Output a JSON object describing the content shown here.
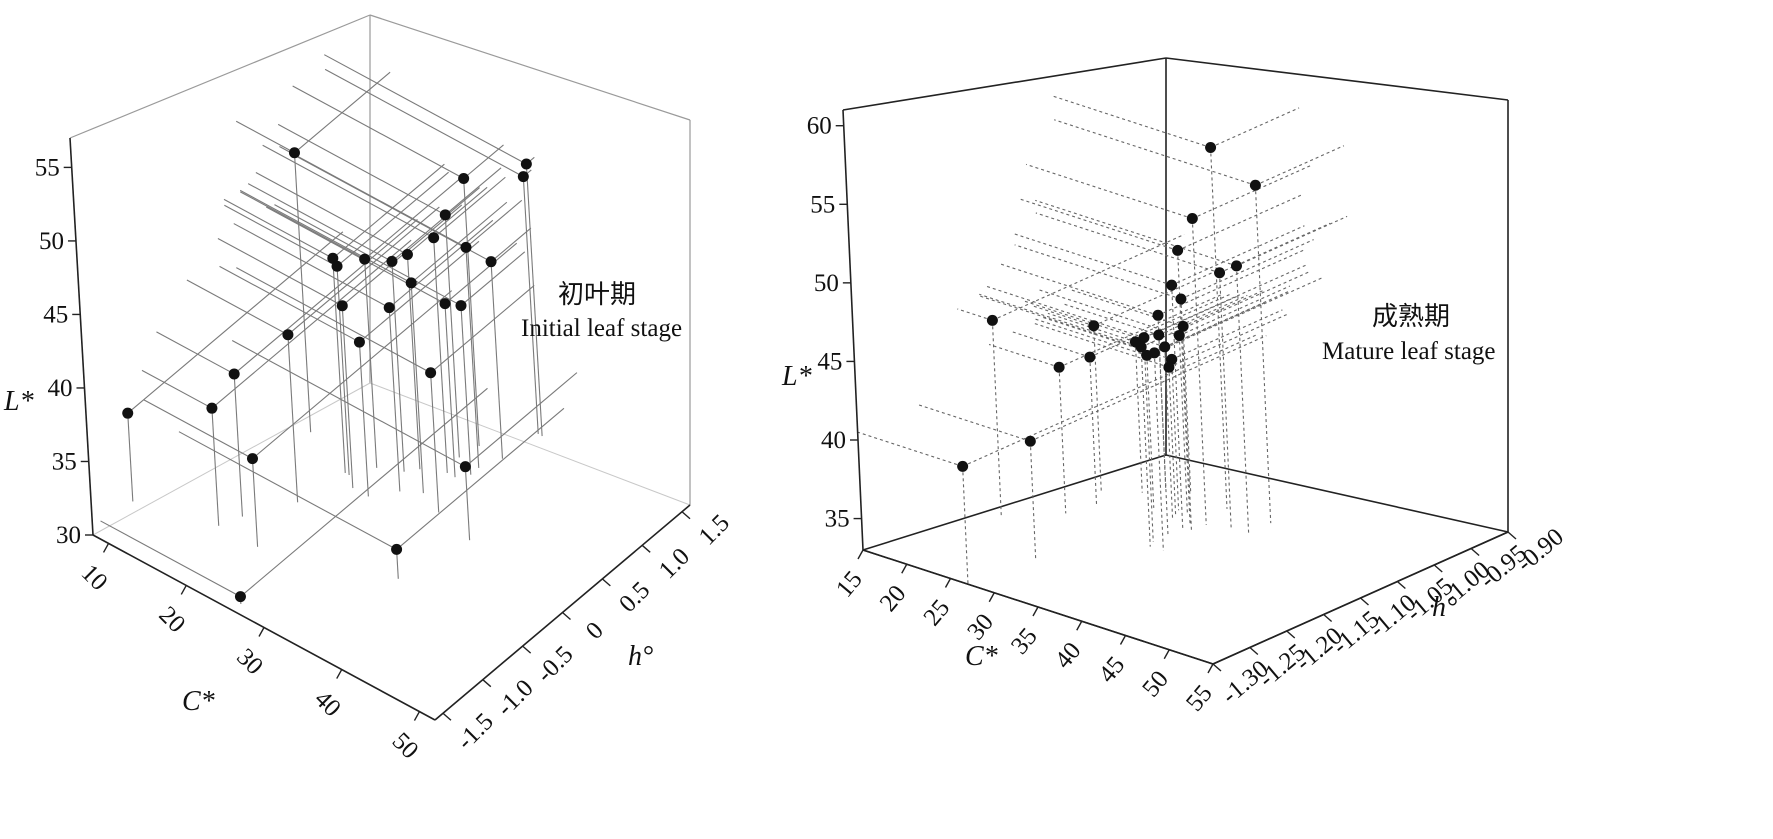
{
  "chart_data": [
    {
      "type": "scatter",
      "scatter3d": true,
      "annotation": [
        "初叶期",
        "Initial leaf stage"
      ],
      "axes": {
        "L": {
          "label": "L*",
          "range": [
            30,
            57
          ],
          "ticks": [
            30,
            35,
            40,
            45,
            50,
            55
          ]
        },
        "C": {
          "label": "C*",
          "range": [
            8,
            52
          ],
          "ticks": [
            10,
            20,
            30,
            40,
            50
          ]
        },
        "h": {
          "label": "h°",
          "range": [
            -1.6,
            1.6
          ],
          "ticks": [
            "1.5",
            "1.0",
            "0.5",
            "0",
            "-0.5",
            "-1.0",
            "-1.5"
          ]
        }
      },
      "points": [
        {
          "C": 15.5,
          "h": 0.4,
          "L": 49.0
        },
        {
          "C": 30.0,
          "h": 1.1,
          "L": 48.2
        },
        {
          "C": 34.0,
          "h": 1.5,
          "L": 48.5
        },
        {
          "C": 33.5,
          "h": 1.5,
          "L": 47.5
        },
        {
          "C": 29.5,
          "h": 0.9,
          "L": 46.5
        },
        {
          "C": 30.0,
          "h": 0.7,
          "L": 46.0
        },
        {
          "C": 32.0,
          "h": 0.9,
          "L": 45.0
        },
        {
          "C": 22.0,
          "h": 0.2,
          "L": 44.6
        },
        {
          "C": 22.5,
          "h": 0.2,
          "L": 44.2
        },
        {
          "C": 24.0,
          "h": 0.4,
          "L": 44.2
        },
        {
          "C": 26.5,
          "h": 0.5,
          "L": 44.3
        },
        {
          "C": 27.5,
          "h": 0.6,
          "L": 44.6
        },
        {
          "C": 30.0,
          "h": 0.4,
          "L": 44.3
        },
        {
          "C": 33.0,
          "h": 1.1,
          "L": 43.4
        },
        {
          "C": 24.0,
          "h": 0.1,
          "L": 42.4
        },
        {
          "C": 28.0,
          "h": 0.3,
          "L": 42.5
        },
        {
          "C": 31.0,
          "h": 0.7,
          "L": 41.8
        },
        {
          "C": 32.0,
          "h": 0.8,
          "L": 41.5
        },
        {
          "C": 21.0,
          "h": -0.3,
          "L": 41.4
        },
        {
          "C": 26.0,
          "h": 0.1,
          "L": 40.5
        },
        {
          "C": 18.0,
          "h": -0.7,
          "L": 39.7
        },
        {
          "C": 33.0,
          "h": 0.3,
          "L": 39.5
        },
        {
          "C": 17.0,
          "h": -0.9,
          "L": 38.0
        },
        {
          "C": 8.0,
          "h": -1.1,
          "L": 36.0
        },
        {
          "C": 22.0,
          "h": -0.9,
          "L": 36.0
        },
        {
          "C": 38.0,
          "h": 0.2,
          "L": 35.0
        },
        {
          "C": 36.0,
          "h": -0.5,
          "L": 32.0
        },
        {
          "C": 26.0,
          "h": -1.5,
          "L": 30.5
        }
      ]
    },
    {
      "type": "scatter",
      "scatter3d": true,
      "annotation": [
        "成熟期",
        "Mature leaf stage"
      ],
      "axes": {
        "L": {
          "label": "L*",
          "range": [
            33,
            61
          ],
          "ticks": [
            35,
            40,
            45,
            50,
            55,
            60
          ]
        },
        "C": {
          "label": "C*",
          "range": [
            15,
            55
          ],
          "ticks": [
            15,
            20,
            25,
            30,
            35,
            40,
            45,
            50,
            55
          ]
        },
        "h": {
          "label": "h°",
          "range": [
            -1.3,
            -0.9
          ],
          "ticks": [
            "-0.90",
            "-0.95",
            "-1.00",
            "-1.05",
            "-1.10",
            "-1.15",
            "-1.20",
            "-1.25",
            "-1.30"
          ]
        }
      },
      "points": [
        {
          "C": 33.0,
          "h": -1.02,
          "L": 56.0
        },
        {
          "C": 38.0,
          "h": -1.02,
          "L": 54.5
        },
        {
          "C": 34.0,
          "h": -1.06,
          "L": 52.5
        },
        {
          "C": 33.0,
          "h": -1.07,
          "L": 50.5
        },
        {
          "C": 38.0,
          "h": -1.05,
          "L": 50.0
        },
        {
          "C": 36.0,
          "h": -1.05,
          "L": 49.2
        },
        {
          "C": 33.0,
          "h": -1.08,
          "L": 48.5
        },
        {
          "C": 34.0,
          "h": -1.08,
          "L": 47.8
        },
        {
          "C": 33.0,
          "h": -1.1,
          "L": 47.0
        },
        {
          "C": 33.0,
          "h": -1.12,
          "L": 46.0
        },
        {
          "C": 33.5,
          "h": -1.13,
          "L": 45.7
        },
        {
          "C": 35.0,
          "h": -1.13,
          "L": 45.6
        },
        {
          "C": 19.0,
          "h": -1.16,
          "L": 45.4
        },
        {
          "C": 31.0,
          "h": -1.07,
          "L": 44.0
        },
        {
          "C": 31.0,
          "h": -1.05,
          "L": 44.3
        },
        {
          "C": 28.0,
          "h": -1.01,
          "L": 43.5
        },
        {
          "C": 22.0,
          "h": -1.06,
          "L": 43.5
        },
        {
          "C": 26.0,
          "h": -1.02,
          "L": 42.8
        },
        {
          "C": 25.0,
          "h": -1.04,
          "L": 42.6
        },
        {
          "C": 28.0,
          "h": -1.06,
          "L": 42.7
        },
        {
          "C": 30.0,
          "h": -1.05,
          "L": 42.6
        },
        {
          "C": 30.5,
          "h": -1.06,
          "L": 42.4
        },
        {
          "C": 24.0,
          "h": -1.09,
          "L": 42.5
        },
        {
          "C": 23.0,
          "h": -1.12,
          "L": 42.3
        },
        {
          "C": 28.0,
          "h": -1.22,
          "L": 40.6
        },
        {
          "C": 27.0,
          "h": -1.3,
          "L": 40.5
        }
      ]
    }
  ]
}
